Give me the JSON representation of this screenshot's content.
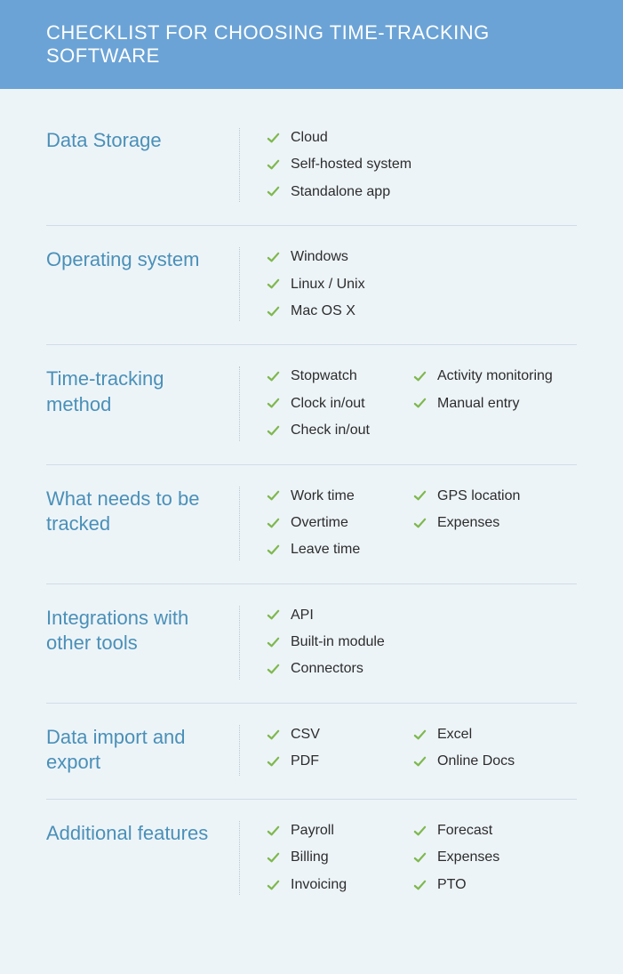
{
  "colors": {
    "header_bg": "#6ba3d6",
    "header_text": "#ffffff",
    "page_bg": "#edf4f8",
    "section_title": "#4a90b8",
    "item_text": "#2c2c2c",
    "check_color": "#7fb84e",
    "divider": "#cfdde4",
    "dotted_divider": "#b8c9d3"
  },
  "typography": {
    "header_fontsize": 22,
    "section_title_fontsize": 22,
    "item_fontsize": 16
  },
  "header": {
    "title": "CHECKLIST FOR CHOOSING TIME-TRACKING SOFTWARE"
  },
  "sections": [
    {
      "title": "Data Storage",
      "cols": [
        [
          "Cloud",
          "Self-hosted system",
          "Standalone app"
        ]
      ]
    },
    {
      "title": "Operating system",
      "cols": [
        [
          "Windows",
          "Linux / Unix",
          "Mac OS X"
        ]
      ]
    },
    {
      "title": "Time-tracking method",
      "cols": [
        [
          "Stopwatch",
          "Clock in/out",
          "Check in/out"
        ],
        [
          "Activity monitoring",
          "Manual entry"
        ]
      ]
    },
    {
      "title": "What needs to be tracked",
      "cols": [
        [
          "Work time",
          "Overtime",
          "Leave time"
        ],
        [
          "GPS location",
          "Expenses"
        ]
      ]
    },
    {
      "title": "Integrations with other tools",
      "cols": [
        [
          "API",
          "Built-in module",
          "Connectors"
        ]
      ]
    },
    {
      "title": "Data import and export",
      "cols": [
        [
          "CSV",
          "PDF"
        ],
        [
          "Excel",
          "Online Docs"
        ]
      ]
    },
    {
      "title": "Additional features",
      "cols": [
        [
          "Payroll",
          "Billing",
          "Invoicing"
        ],
        [
          "Forecast",
          "Expenses",
          "PTO"
        ]
      ]
    }
  ]
}
